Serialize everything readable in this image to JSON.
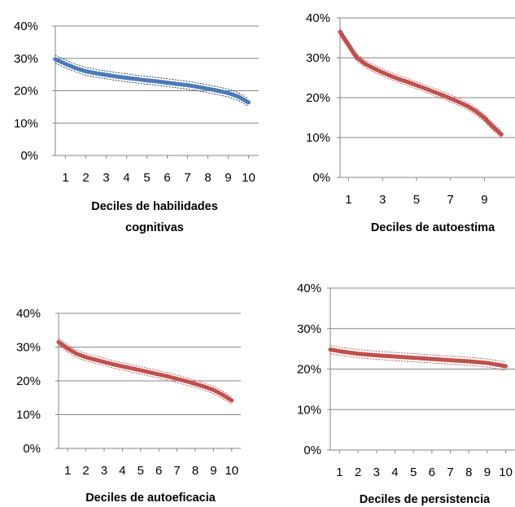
{
  "chart_data": [
    {
      "type": "line",
      "xlabel_lines": [
        "Deciles de habilidades",
        "cognitivas"
      ],
      "x_tick_labels": [
        "1",
        "2",
        "3",
        "4",
        "5",
        "6",
        "7",
        "8",
        "9",
        "10"
      ],
      "y_tick_labels": [
        "0%",
        "10%",
        "20%",
        "30%",
        "40%"
      ],
      "ylim": [
        0,
        40
      ],
      "grid": true,
      "legend": "none",
      "series_color": "#4a7ab8",
      "ci_color": "#1f3552",
      "x": [
        0.5,
        1,
        1.5,
        2,
        2.5,
        3,
        3.5,
        4,
        4.5,
        5,
        5.5,
        6,
        6.5,
        7,
        7.5,
        8,
        8.5,
        9,
        9.5,
        10
      ],
      "y": [
        29.7,
        28.3,
        27.0,
        26.0,
        25.4,
        24.9,
        24.4,
        24.0,
        23.6,
        23.2,
        22.9,
        22.5,
        22.1,
        21.7,
        21.2,
        20.6,
        20.0,
        19.3,
        18.2,
        16.4
      ],
      "ci_halfwidth": 1.2
    },
    {
      "type": "line",
      "xlabel_lines": [
        "Deciles de autoestima"
      ],
      "x_tick_labels": [
        "1",
        "3",
        "5",
        "7",
        "9"
      ],
      "y_tick_labels": [
        "0%",
        "10%",
        "20%",
        "30%",
        "40%"
      ],
      "ylim": [
        0,
        40
      ],
      "grid": true,
      "legend": "none",
      "series_color": "#c0504d",
      "ci_color": "#c0504d",
      "x": [
        0.5,
        0.75,
        1,
        1.25,
        1.5,
        2,
        2.5,
        3,
        3.5,
        4,
        4.5,
        5,
        5.5,
        6,
        6.5,
        7,
        7.5,
        8,
        8.5,
        9,
        9.5,
        10
      ],
      "y": [
        36.5,
        34.8,
        33.2,
        31.5,
        30.0,
        28.4,
        27.3,
        26.3,
        25.4,
        24.6,
        23.9,
        23.1,
        22.3,
        21.5,
        20.7,
        19.8,
        18.9,
        17.9,
        16.6,
        14.9,
        12.7,
        10.8
      ],
      "ci_halfwidth": 0.9
    },
    {
      "type": "line",
      "xlabel_lines": [
        "Deciles de autoeficacia"
      ],
      "x_tick_labels": [
        "1",
        "2",
        "3",
        "4",
        "5",
        "6",
        "7",
        "8",
        "9",
        "10"
      ],
      "y_tick_labels": [
        "0%",
        "10%",
        "20%",
        "30%",
        "40%"
      ],
      "ylim": [
        0,
        40
      ],
      "grid": true,
      "legend": "none",
      "series_color": "#c0504d",
      "ci_color": "#c0504d",
      "x": [
        0.5,
        1,
        1.5,
        2,
        2.5,
        3,
        3.5,
        4,
        4.5,
        5,
        5.5,
        6,
        6.5,
        7,
        7.5,
        8,
        8.5,
        9,
        9.5,
        10
      ],
      "y": [
        31.5,
        29.6,
        28.0,
        27.0,
        26.3,
        25.6,
        24.9,
        24.3,
        23.7,
        23.1,
        22.5,
        21.9,
        21.3,
        20.6,
        19.9,
        19.1,
        18.3,
        17.3,
        15.9,
        14.2
      ],
      "ci_halfwidth": 1.1
    },
    {
      "type": "line",
      "xlabel_lines": [
        "Deciles de persistencia"
      ],
      "x_tick_labels": [
        "1",
        "2",
        "3",
        "4",
        "5",
        "6",
        "7",
        "8",
        "9",
        "10"
      ],
      "y_tick_labels": [
        "0%",
        "10%",
        "20%",
        "30%",
        "40%"
      ],
      "ylim": [
        0,
        40
      ],
      "grid": true,
      "legend": "none",
      "series_color": "#c0504d",
      "ci_color": "#c0504d",
      "x": [
        0.5,
        1,
        2,
        3,
        4,
        5,
        6,
        7,
        8,
        9,
        10
      ],
      "y": [
        24.8,
        24.4,
        23.8,
        23.4,
        23.1,
        22.8,
        22.5,
        22.2,
        21.9,
        21.5,
        20.7
      ],
      "ci_halfwidth": 1.0
    }
  ]
}
